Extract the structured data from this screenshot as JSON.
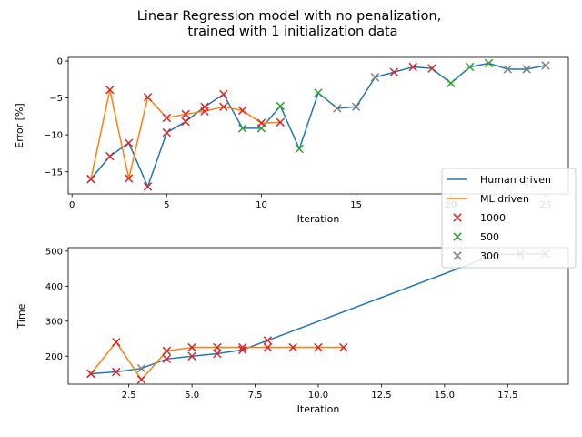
{
  "figure": {
    "title_line1": "Linear Regression model with no  penalization,",
    "title_line2": "trained with 1 initialization data"
  },
  "colors": {
    "human": "#1f77b4",
    "ml": "#ff7f0e",
    "m1000": "#d62728",
    "m500": "#2ca02c",
    "m300": "#7f7f7f",
    "legend_border": "#cccccc"
  },
  "legend": {
    "entries": [
      {
        "label": "Human driven",
        "kind": "line",
        "color_key": "human"
      },
      {
        "label": "ML driven",
        "kind": "line",
        "color_key": "ml"
      },
      {
        "label": "1000",
        "kind": "marker",
        "color_key": "m1000"
      },
      {
        "label": "500",
        "kind": "marker",
        "color_key": "m500"
      },
      {
        "label": "300",
        "kind": "marker",
        "color_key": "m300"
      }
    ]
  },
  "chart_data": [
    {
      "type": "line",
      "xlabel": "Iteration",
      "ylabel": "Error [%]",
      "xlim": [
        -0.2,
        26.2
      ],
      "ylim": [
        -18,
        0.5
      ],
      "xticks": [
        0,
        5,
        10,
        15,
        20,
        25
      ],
      "yticks": [
        0,
        -5,
        -10,
        -15
      ],
      "grid": false,
      "series": [
        {
          "name": "Human driven",
          "color_key": "human",
          "points": [
            [
              1,
              -16
            ],
            [
              2,
              -12.9
            ],
            [
              3,
              -11.1
            ],
            [
              4,
              -17
            ],
            [
              5,
              -9.7
            ],
            [
              6,
              -8.2
            ],
            [
              7,
              -6.2
            ],
            [
              8,
              -4.5
            ],
            [
              9,
              -9.1
            ],
            [
              10,
              -9.1
            ],
            [
              11,
              -6.1
            ],
            [
              12,
              -11.9
            ],
            [
              13,
              -4.3
            ],
            [
              14,
              -6.4
            ],
            [
              15,
              -6.2
            ],
            [
              16,
              -2.2
            ],
            [
              17,
              -1.5
            ],
            [
              18,
              -0.8
            ],
            [
              19,
              -1.0
            ],
            [
              20,
              -3.0
            ],
            [
              21,
              -0.8
            ],
            [
              22,
              -0.3
            ],
            [
              23,
              -1.1
            ],
            [
              24,
              -1.1
            ],
            [
              25,
              -0.6
            ]
          ]
        },
        {
          "name": "ML driven",
          "color_key": "ml",
          "points": [
            [
              1,
              -16
            ],
            [
              2,
              -3.9
            ],
            [
              3,
              -15.9
            ],
            [
              4,
              -4.9
            ],
            [
              5,
              -7.7
            ],
            [
              6,
              -7.2
            ],
            [
              7,
              -6.8
            ],
            [
              8,
              -6.2
            ],
            [
              9,
              -6.7
            ],
            [
              10,
              -8.4
            ],
            [
              11,
              -8.3
            ]
          ]
        }
      ],
      "markers": [
        {
          "x": 1,
          "y": -16,
          "group": "m1000"
        },
        {
          "x": 2,
          "y": -12.9,
          "group": "m1000"
        },
        {
          "x": 3,
          "y": -11.1,
          "group": "m1000"
        },
        {
          "x": 4,
          "y": -17,
          "group": "m1000"
        },
        {
          "x": 5,
          "y": -9.7,
          "group": "m1000"
        },
        {
          "x": 6,
          "y": -8.2,
          "group": "m1000"
        },
        {
          "x": 7,
          "y": -6.2,
          "group": "m1000"
        },
        {
          "x": 8,
          "y": -4.5,
          "group": "m1000"
        },
        {
          "x": 9,
          "y": -9.1,
          "group": "m500"
        },
        {
          "x": 10,
          "y": -9.1,
          "group": "m500"
        },
        {
          "x": 11,
          "y": -6.1,
          "group": "m500"
        },
        {
          "x": 12,
          "y": -11.9,
          "group": "m500"
        },
        {
          "x": 13,
          "y": -4.3,
          "group": "m500"
        },
        {
          "x": 14,
          "y": -6.4,
          "group": "m300"
        },
        {
          "x": 15,
          "y": -6.2,
          "group": "m300"
        },
        {
          "x": 16,
          "y": -2.2,
          "group": "m300"
        },
        {
          "x": 17,
          "y": -1.5,
          "group": "m1000"
        },
        {
          "x": 18,
          "y": -0.8,
          "group": "m1000"
        },
        {
          "x": 19,
          "y": -1.0,
          "group": "m1000"
        },
        {
          "x": 20,
          "y": -3.0,
          "group": "m500"
        },
        {
          "x": 21,
          "y": -0.8,
          "group": "m500"
        },
        {
          "x": 22,
          "y": -0.3,
          "group": "m500"
        },
        {
          "x": 23,
          "y": -1.1,
          "group": "m300"
        },
        {
          "x": 24,
          "y": -1.1,
          "group": "m300"
        },
        {
          "x": 25,
          "y": -0.6,
          "group": "m300"
        },
        {
          "x": 1,
          "y": -16,
          "group": "m1000"
        },
        {
          "x": 2,
          "y": -3.9,
          "group": "m1000"
        },
        {
          "x": 3,
          "y": -15.9,
          "group": "m1000"
        },
        {
          "x": 4,
          "y": -4.9,
          "group": "m1000"
        },
        {
          "x": 5,
          "y": -7.7,
          "group": "m1000"
        },
        {
          "x": 6,
          "y": -7.2,
          "group": "m1000"
        },
        {
          "x": 7,
          "y": -6.8,
          "group": "m1000"
        },
        {
          "x": 8,
          "y": -6.2,
          "group": "m1000"
        },
        {
          "x": 9,
          "y": -6.7,
          "group": "m1000"
        },
        {
          "x": 10,
          "y": -8.4,
          "group": "m1000"
        },
        {
          "x": 11,
          "y": -8.3,
          "group": "m1000"
        }
      ]
    },
    {
      "type": "line",
      "xlabel": "Iteration",
      "ylabel": "Time",
      "xlim": [
        0.1,
        19.9
      ],
      "ylim": [
        120,
        510
      ],
      "xticks": [
        2.5,
        5.0,
        7.5,
        10.0,
        12.5,
        15.0,
        17.5
      ],
      "yticks": [
        200,
        300,
        400,
        500
      ],
      "grid": false,
      "series": [
        {
          "name": "Human driven",
          "color_key": "human",
          "points": [
            [
              1,
              150
            ],
            [
              2,
              155
            ],
            [
              3,
              165
            ],
            [
              4,
              192
            ],
            [
              5,
              200
            ],
            [
              6,
              207
            ],
            [
              7,
              218
            ],
            [
              8,
              245
            ],
            [
              17,
              490
            ],
            [
              18,
              492
            ],
            [
              19,
              492
            ]
          ]
        },
        {
          "name": "ML driven",
          "color_key": "ml",
          "points": [
            [
              1,
              150
            ],
            [
              2,
              240
            ],
            [
              3,
              133
            ],
            [
              4,
              215
            ],
            [
              5,
              225
            ],
            [
              6,
              225
            ],
            [
              7,
              225
            ],
            [
              8,
              225
            ],
            [
              9,
              225
            ],
            [
              10,
              225
            ],
            [
              11,
              225
            ]
          ]
        }
      ],
      "markers": [
        {
          "x": 1,
          "y": 150,
          "group": "m1000"
        },
        {
          "x": 2,
          "y": 155,
          "group": "m1000"
        },
        {
          "x": 3,
          "y": 165,
          "group": "m300"
        },
        {
          "x": 4,
          "y": 192,
          "group": "m1000"
        },
        {
          "x": 5,
          "y": 200,
          "group": "m1000"
        },
        {
          "x": 6,
          "y": 207,
          "group": "m1000"
        },
        {
          "x": 7,
          "y": 218,
          "group": "m1000"
        },
        {
          "x": 8,
          "y": 245,
          "group": "m1000"
        },
        {
          "x": 1,
          "y": 150,
          "group": "m1000"
        },
        {
          "x": 2,
          "y": 240,
          "group": "m1000"
        },
        {
          "x": 3,
          "y": 133,
          "group": "m1000"
        },
        {
          "x": 4,
          "y": 215,
          "group": "m1000"
        },
        {
          "x": 5,
          "y": 225,
          "group": "m1000"
        },
        {
          "x": 6,
          "y": 225,
          "group": "m1000"
        },
        {
          "x": 7,
          "y": 225,
          "group": "m1000"
        },
        {
          "x": 8,
          "y": 225,
          "group": "m1000"
        },
        {
          "x": 9,
          "y": 225,
          "group": "m1000"
        },
        {
          "x": 10,
          "y": 225,
          "group": "m1000"
        },
        {
          "x": 11,
          "y": 225,
          "group": "m1000"
        },
        {
          "x": 18,
          "y": 492,
          "group": "m1000"
        },
        {
          "x": 19,
          "y": 492,
          "group": "m1000"
        }
      ]
    }
  ]
}
